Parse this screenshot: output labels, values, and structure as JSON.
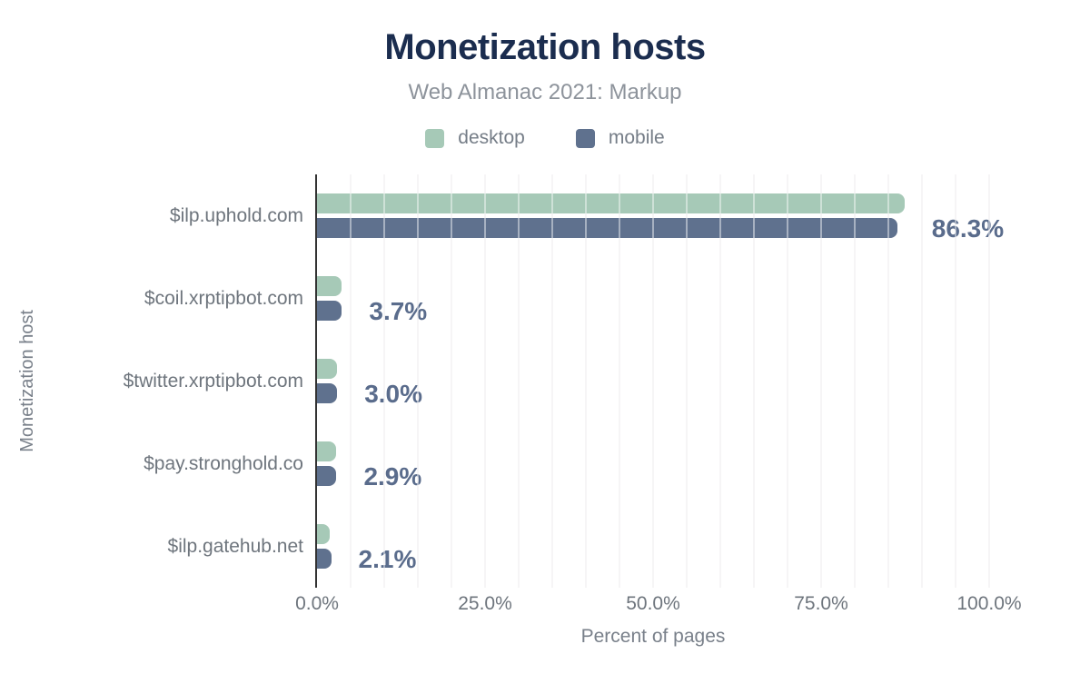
{
  "title": "Monetization hosts",
  "subtitle": "Web Almanac 2021: Markup",
  "legend": {
    "items": [
      {
        "label": "desktop",
        "color": "#a6c9b7"
      },
      {
        "label": "mobile",
        "color": "#5f718e"
      }
    ]
  },
  "axes": {
    "y_title": "Monetization host",
    "x_title": "Percent of pages",
    "x_ticks": [
      {
        "label": "0.0%",
        "value": 0
      },
      {
        "label": "25.0%",
        "value": 25
      },
      {
        "label": "50.0%",
        "value": 50
      },
      {
        "label": "75.0%",
        "value": 75
      },
      {
        "label": "100.0%",
        "value": 100
      }
    ]
  },
  "chart_data": {
    "type": "bar",
    "orientation": "horizontal",
    "title": "Monetization hosts",
    "subtitle": "Web Almanac 2021: Markup",
    "xlabel": "Percent of pages",
    "ylabel": "Monetization host",
    "xlim": [
      0,
      100
    ],
    "grid": "vertical gridlines every 5%",
    "legend_position": "top",
    "categories": [
      "$ilp.uphold.com",
      "$coil.xrptipbot.com",
      "$twitter.xrptipbot.com",
      "$pay.stronghold.co",
      "$ilp.gatehub.net"
    ],
    "series": [
      {
        "name": "desktop",
        "color": "#a6c9b7",
        "values": [
          87.4,
          3.6,
          3.0,
          2.8,
          1.9
        ]
      },
      {
        "name": "mobile",
        "color": "#5f718e",
        "values": [
          86.3,
          3.7,
          3.0,
          2.9,
          2.1
        ]
      }
    ],
    "value_labels": [
      "86.3%",
      "3.7%",
      "3.0%",
      "2.9%",
      "2.1%"
    ],
    "value_labels_series": "mobile"
  },
  "colors": {
    "background": "#ffffff",
    "title": "#1b2d4f",
    "subtitle": "#8d939b",
    "legend_text": "#757d87",
    "category_label": "#6e757d",
    "tick_label": "#6e757d",
    "axis_title": "#79808a",
    "value_label": "#5a6c8c",
    "axis_line": "#333333",
    "gridline": "#efedee",
    "desktop_bar": "#a6c9b7",
    "mobile_bar": "#5f718e"
  }
}
